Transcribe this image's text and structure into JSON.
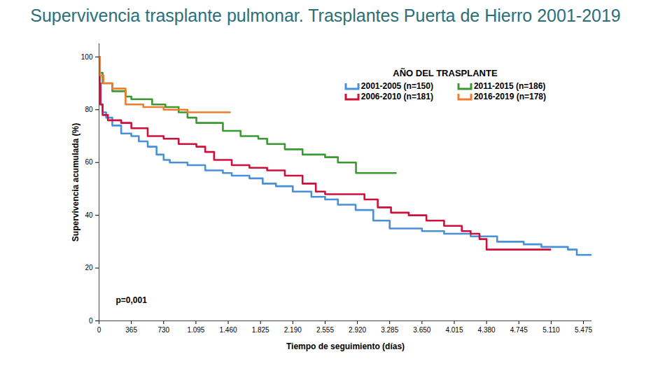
{
  "chart_data": {
    "type": "line",
    "title": "Supervivencia trasplante pulmonar. Trasplantes Puerta de Hierro 2001-2019",
    "x_label": "Tiempo de seguimiento (días)",
    "y_label": "Supervivencia acumulada (%)",
    "legend_title": "AÑO DEL TRASPLANTE",
    "annotation": "p=0,001",
    "line_style": "step",
    "legend": "top-right",
    "grid": false,
    "xlim": [
      0,
      5570
    ],
    "ylim": [
      0,
      105
    ],
    "xticks": [
      0,
      365,
      730,
      {
        "value": 1095,
        "label": "1.095"
      },
      {
        "value": 1460,
        "label": "1.460"
      },
      {
        "value": 1825,
        "label": "1.825"
      },
      {
        "value": 2190,
        "label": "2.190"
      },
      {
        "value": 2555,
        "label": "2.555"
      },
      {
        "value": 2920,
        "label": "2.920"
      },
      {
        "value": 3285,
        "label": "3.285"
      },
      {
        "value": 3650,
        "label": "3.650"
      },
      {
        "value": 4015,
        "label": "4.015"
      },
      {
        "value": 4380,
        "label": "4.380"
      },
      {
        "value": 4745,
        "label": "4.745"
      },
      {
        "value": 5110,
        "label": "5.110"
      },
      {
        "value": 5475,
        "label": "5.475"
      }
    ],
    "yticks": [
      0,
      20,
      40,
      60,
      80,
      100
    ],
    "series": [
      {
        "name": "2001-2005 (n=150)",
        "color": "#4a90d9",
        "x": [
          0,
          10,
          20,
          40,
          80,
          150,
          250,
          365,
          450,
          550,
          650,
          730,
          800,
          1000,
          1200,
          1400,
          1500,
          1700,
          1850,
          2000,
          2190,
          2400,
          2555,
          2700,
          2900,
          3100,
          3285,
          3650,
          3900,
          4200,
          4500,
          4800,
          5000,
          5300,
          5400,
          5560
        ],
        "values": [
          100,
          90,
          82,
          79,
          77,
          74,
          71,
          70,
          68,
          66,
          63,
          61,
          60,
          59,
          57,
          56,
          55,
          54,
          52,
          51,
          49,
          47,
          46,
          44,
          42,
          38,
          35,
          34,
          33,
          32,
          30,
          29,
          28,
          27,
          25,
          25
        ]
      },
      {
        "name": "2006-2010 (n=181)",
        "color": "#d0103a",
        "x": [
          0,
          5,
          15,
          40,
          100,
          250,
          365,
          550,
          730,
          900,
          1100,
          1200,
          1300,
          1500,
          1700,
          1900,
          2100,
          2300,
          2450,
          2555,
          2850,
          3000,
          3150,
          3300,
          3500,
          3700,
          3900,
          4100,
          4200,
          4300,
          4380,
          4800,
          5100
        ],
        "values": [
          100,
          90,
          82,
          78,
          76,
          75,
          73,
          70,
          69,
          67,
          66,
          64,
          61,
          59,
          58,
          57,
          55,
          52,
          49,
          48,
          48,
          46,
          43,
          41,
          40,
          38,
          36,
          34,
          33,
          31,
          27,
          27,
          27
        ]
      },
      {
        "name": "2011-2015 (n=186)",
        "color": "#3a9a2f",
        "x": [
          0,
          10,
          40,
          150,
          300,
          365,
          600,
          750,
          900,
          1000,
          1100,
          1400,
          1600,
          1800,
          1900,
          2100,
          2300,
          2555,
          2700,
          2904,
          3355
        ],
        "values": [
          100,
          94,
          90,
          87,
          85,
          84,
          82,
          81,
          79,
          77,
          75,
          72,
          70,
          69,
          67,
          65,
          63,
          62,
          60,
          56,
          56
        ]
      },
      {
        "name": "2016-2019 (n=178)",
        "color": "#ed7d31",
        "x": [
          0,
          10,
          50,
          150,
          300,
          500,
          730,
          1000,
          1480
        ],
        "values": [
          100,
          93,
          90,
          88,
          82,
          81,
          80,
          79,
          79
        ]
      }
    ]
  }
}
